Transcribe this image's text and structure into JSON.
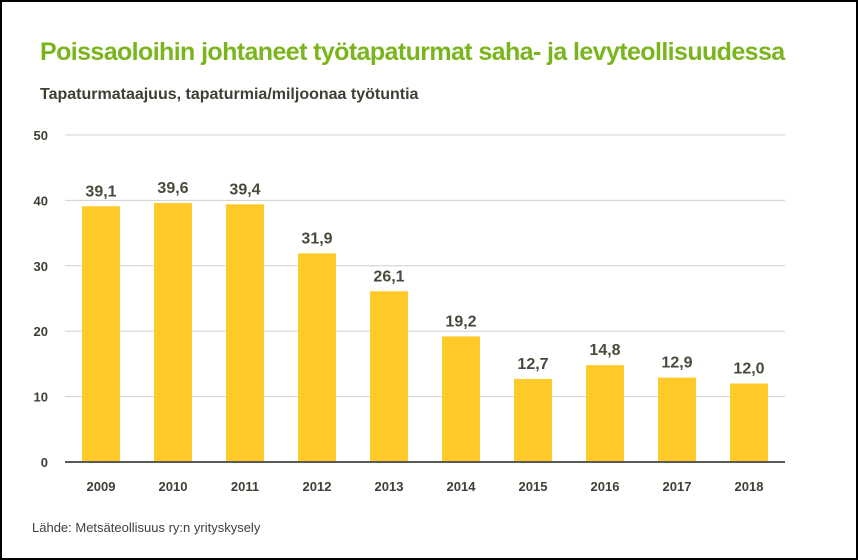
{
  "chart_data": {
    "type": "bar",
    "title": "Poissaoloihin johtaneet työtapaturmat saha- ja levyteollisuudessa",
    "subtitle": "Tapaturmataajuus, tapaturmia/miljoonaa työtuntia",
    "xlabel": "",
    "ylabel": "",
    "categories": [
      "2009",
      "2010",
      "2011",
      "2012",
      "2013",
      "2014",
      "2015",
      "2016",
      "2017",
      "2018"
    ],
    "values": [
      39.1,
      39.6,
      39.4,
      31.9,
      26.1,
      19.2,
      12.7,
      14.8,
      12.9,
      12.0
    ],
    "data_labels": [
      "39,1",
      "39,6",
      "39,4",
      "31,9",
      "26,1",
      "19,2",
      "12,7",
      "14,8",
      "12,9",
      "12,0"
    ],
    "ylim": [
      0,
      50
    ],
    "yticks": [
      "0",
      "10",
      "20",
      "30",
      "40",
      "50"
    ],
    "grid": true,
    "source": "Lähde: Metsäteollisuus ry:n yrityskysely",
    "colors": {
      "bar": "#FFC928",
      "title": "#7AB51D",
      "grid": "#D0D0D0",
      "axis": "#595959"
    }
  }
}
